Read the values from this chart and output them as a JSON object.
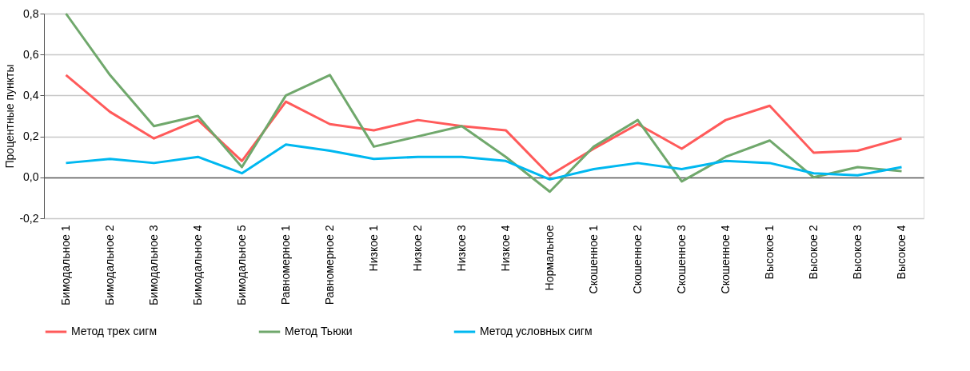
{
  "chart_data": {
    "type": "line",
    "ylabel": "Процентные пункты",
    "categories": [
      "Бимодальное 1",
      "Бимодальное 2",
      "Бимодальное 3",
      "Бимодальное 4",
      "Бимодальное 5",
      "Равномерное 1",
      "Равномерное 2",
      "Низкое 1",
      "Низкое 2",
      "Низкое 3",
      "Низкое 4",
      "Нормальное",
      "Скошенное 1",
      "Скошенное 2",
      "Скошенное 3",
      "Скошенное 4",
      "Высокое 1",
      "Высокое 2",
      "Высокое 3",
      "Высокое 4"
    ],
    "series": [
      {
        "name": "Метод трех сигм",
        "color": "#ff5a5a",
        "values": [
          0.5,
          0.32,
          0.19,
          0.28,
          0.08,
          0.37,
          0.26,
          0.23,
          0.28,
          0.25,
          0.23,
          0.01,
          0.14,
          0.26,
          0.14,
          0.28,
          0.35,
          0.12,
          0.13,
          0.19
        ]
      },
      {
        "name": "Метод Тьюки",
        "color": "#70a86c",
        "values": [
          0.8,
          0.5,
          0.25,
          0.3,
          0.05,
          0.4,
          0.5,
          0.15,
          0.2,
          0.25,
          0.1,
          -0.07,
          0.15,
          0.28,
          -0.02,
          0.1,
          0.18,
          0.0,
          0.05,
          0.03
        ]
      },
      {
        "name": "Метод условных сигм",
        "color": "#00b8f0",
        "values": [
          0.07,
          0.09,
          0.07,
          0.1,
          0.02,
          0.16,
          0.13,
          0.09,
          0.1,
          0.1,
          0.08,
          -0.01,
          0.04,
          0.07,
          0.04,
          0.08,
          0.07,
          0.02,
          0.01,
          0.05
        ]
      }
    ],
    "ylim": [
      -0.2,
      0.8
    ],
    "yticks": [
      {
        "value": -0.2,
        "label": "-0,2"
      },
      {
        "value": 0.0,
        "label": "0,0"
      },
      {
        "value": 0.2,
        "label": "0,2"
      },
      {
        "value": 0.4,
        "label": "0,4"
      },
      {
        "value": 0.6,
        "label": "0,6"
      },
      {
        "value": 0.8,
        "label": "0,8"
      }
    ],
    "grid": "y",
    "legend": "bottom",
    "marker": "none",
    "line_style": "solid"
  }
}
